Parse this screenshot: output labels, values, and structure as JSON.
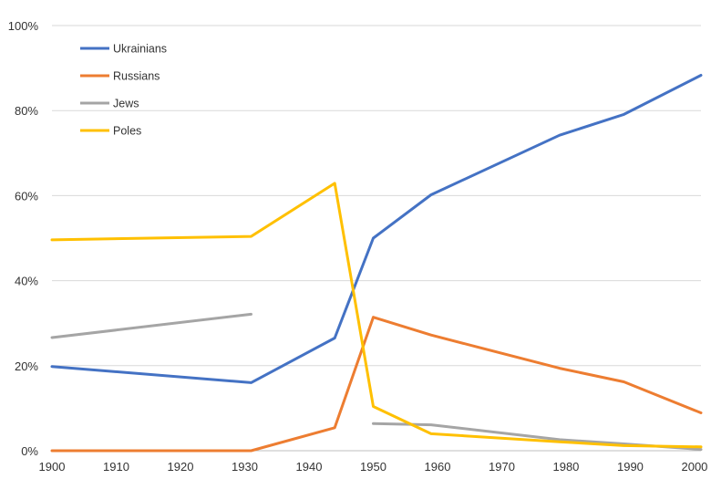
{
  "chart_data": {
    "type": "line",
    "title": "",
    "xlabel": "",
    "ylabel": "",
    "xlim": [
      1900,
      2001
    ],
    "ylim": [
      0,
      100
    ],
    "x_ticks": [
      1900,
      1910,
      1920,
      1930,
      1940,
      1950,
      1960,
      1970,
      1980,
      1990,
      2000
    ],
    "y_ticks": [
      "0%",
      "20%",
      "40%",
      "60%",
      "80%",
      "100%"
    ],
    "y_tick_values": [
      0,
      20,
      40,
      60,
      80,
      100
    ],
    "grid": "horizontal",
    "legend_position": "top-left",
    "series": [
      {
        "name": "Ukrainians",
        "color": "#4472C4",
        "points": [
          [
            1900,
            19.8
          ],
          [
            1931,
            16.0
          ],
          [
            1944,
            26.5
          ],
          [
            1950,
            50.0
          ],
          [
            1959,
            60.2
          ],
          [
            1979,
            74.2
          ],
          [
            1989,
            79.1
          ],
          [
            2001,
            88.3
          ]
        ]
      },
      {
        "name": "Russians",
        "color": "#ED7D31",
        "points": [
          [
            1900,
            0
          ],
          [
            1931,
            0
          ],
          [
            1944,
            5.4
          ],
          [
            1950,
            31.4
          ],
          [
            1959,
            27.2
          ],
          [
            1979,
            19.4
          ],
          [
            1989,
            16.2
          ],
          [
            2001,
            8.9
          ]
        ]
      },
      {
        "name": "Jews",
        "color": "#A5A5A5",
        "segments": [
          [
            [
              1900,
              26.6
            ],
            [
              1931,
              32.1
            ]
          ],
          [
            [
              1950,
              6.4
            ],
            [
              1959,
              6.1
            ],
            [
              1979,
              2.6
            ],
            [
              1989,
              1.6
            ],
            [
              2001,
              0.3
            ]
          ]
        ]
      },
      {
        "name": "Poles",
        "color": "#FFC000",
        "points": [
          [
            1900,
            49.6
          ],
          [
            1931,
            50.4
          ],
          [
            1944,
            62.9
          ],
          [
            1950,
            10.4
          ],
          [
            1959,
            4.0
          ],
          [
            1979,
            2.1
          ],
          [
            1989,
            1.2
          ],
          [
            2001,
            0.9
          ]
        ]
      }
    ]
  }
}
